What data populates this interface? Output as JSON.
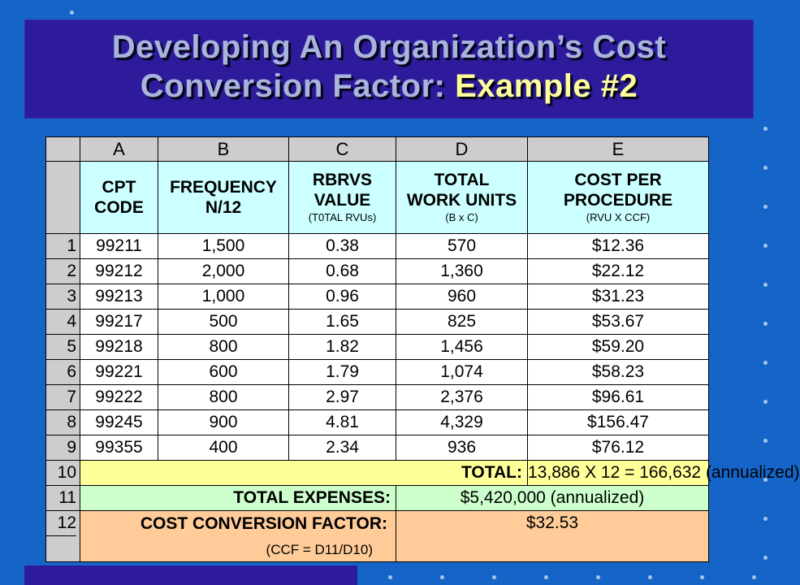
{
  "slide": {
    "title_line1": "Developing An Organization’s Cost",
    "title_line2_plain": "Conversion Factor: ",
    "title_line2_highlight": "Example #2"
  },
  "sheet": {
    "column_letters": [
      "A",
      "B",
      "C",
      "D",
      "E"
    ],
    "headers": [
      {
        "main1": "CPT",
        "main2": "CODE",
        "sub": ""
      },
      {
        "main1": "FREQUENCY",
        "main2": "N/12",
        "sub": ""
      },
      {
        "main1": "RBRVS",
        "main2": "VALUE",
        "sub": "(T0TAL RVUs)"
      },
      {
        "main1": "TOTAL",
        "main2": "WORK UNITS",
        "sub": "(B x C)"
      },
      {
        "main1": "COST PER",
        "main2": "PROCEDURE",
        "sub": "(RVU X CCF)"
      }
    ],
    "rows": [
      {
        "n": "1",
        "cells": [
          "99211",
          "1,500",
          "0.38",
          "570",
          "$12.36"
        ]
      },
      {
        "n": "2",
        "cells": [
          "99212",
          "2,000",
          "0.68",
          "1,360",
          "$22.12"
        ]
      },
      {
        "n": "3",
        "cells": [
          "99213",
          "1,000",
          "0.96",
          "960",
          "$31.23"
        ]
      },
      {
        "n": "4",
        "cells": [
          "99217",
          "500",
          "1.65",
          "825",
          "$53.67"
        ]
      },
      {
        "n": "5",
        "cells": [
          "99218",
          "800",
          "1.82",
          "1,456",
          "$59.20"
        ]
      },
      {
        "n": "6",
        "cells": [
          "99221",
          "600",
          "1.79",
          "1,074",
          "$58.23"
        ]
      },
      {
        "n": "7",
        "cells": [
          "99222",
          "800",
          "2.97",
          "2,376",
          "$96.61"
        ]
      },
      {
        "n": "8",
        "cells": [
          "99245",
          "900",
          "4.81",
          "4,329",
          "$156.47"
        ]
      },
      {
        "n": "9",
        "cells": [
          "99355",
          "400",
          "2.34",
          "936",
          "$76.12"
        ]
      }
    ],
    "total": {
      "n": "10",
      "label": "TOTAL:",
      "value": "13,886 X 12 = 166,632 (annualized)"
    },
    "expenses": {
      "n": "11",
      "label": "TOTAL EXPENSES:",
      "value": "$5,420,000 (annualized)"
    },
    "ccf": {
      "n": "12",
      "label": "COST CONVERSION FACTOR:",
      "note": "(CCF = D11/D10)",
      "value": "$32.53"
    }
  },
  "colors": {
    "background": "#1565c8",
    "title_box": "#2d1b9b",
    "title_text": "#a8b4dc",
    "title_highlight": "#ffff99",
    "header_fill": "#ccffff",
    "total_fill": "#ffff99",
    "expenses_fill": "#ccffcc",
    "ccf_fill": "#ffcc99"
  }
}
